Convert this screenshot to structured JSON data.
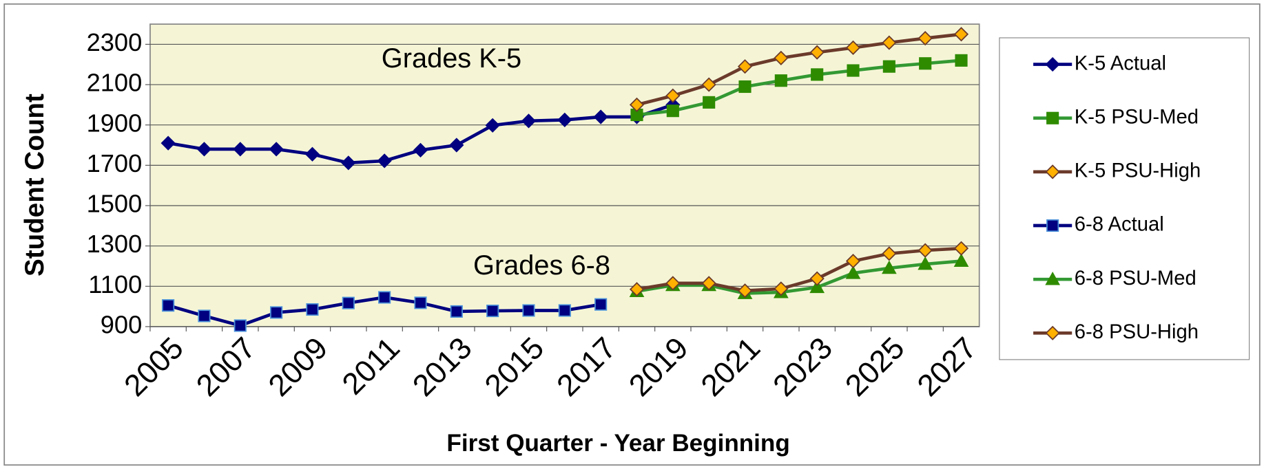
{
  "chart_data": {
    "type": "line",
    "y_label": "Student Count",
    "x_label": "First Quarter - Year Beginning",
    "annotations": [
      "Grades K-5",
      "Grades 6-8"
    ],
    "categories": [
      "2005",
      null,
      "2007",
      null,
      "2009",
      null,
      "2011",
      null,
      "2013",
      null,
      "2015",
      null,
      "2017",
      null,
      "2019",
      null,
      "2021",
      null,
      "2023",
      null,
      "2025",
      null,
      "2027"
    ],
    "ylim": [
      900,
      2400
    ],
    "yticks": [
      900,
      1100,
      1300,
      1500,
      1700,
      1900,
      2100,
      2300
    ],
    "grid": true,
    "legend": "right",
    "series": [
      {
        "name": "K-5 Actual",
        "color": "#000080",
        "marker": "diamond",
        "marker_color": "#000080",
        "values": [
          1810,
          1780,
          1780,
          1780,
          1755,
          1712,
          1722,
          1775,
          1800,
          1898,
          1920,
          1925,
          1940,
          1940,
          2000,
          null,
          null,
          null,
          null,
          null,
          null,
          null,
          null
        ]
      },
      {
        "name": "K-5 PSU-Med",
        "color": "#339933",
        "marker": "square",
        "marker_color": "#2e8b00",
        "values": [
          null,
          null,
          null,
          null,
          null,
          null,
          null,
          null,
          null,
          null,
          null,
          null,
          null,
          1950,
          1970,
          2012,
          2090,
          2120,
          2150,
          2170,
          2190,
          2205,
          2220
        ]
      },
      {
        "name": "K-5 PSU-High",
        "color": "#6b3a2a",
        "marker": "diamond",
        "marker_color": "#ffb000",
        "values": [
          null,
          null,
          null,
          null,
          null,
          null,
          null,
          null,
          null,
          null,
          null,
          null,
          null,
          2000,
          2045,
          2100,
          2190,
          2232,
          2260,
          2283,
          2308,
          2330,
          2350
        ]
      },
      {
        "name": "6-8 Actual",
        "color": "#000080",
        "marker": "square",
        "marker_color": "#000080",
        "values": [
          1005,
          953,
          905,
          970,
          985,
          1017,
          1045,
          1018,
          975,
          978,
          980,
          980,
          1010,
          null,
          null,
          null,
          null,
          null,
          null,
          null,
          null,
          null,
          null
        ]
      },
      {
        "name": "6-8 PSU-Med",
        "color": "#339933",
        "marker": "triangle",
        "marker_color": "#2e8b00",
        "values": [
          null,
          null,
          null,
          null,
          null,
          null,
          null,
          null,
          null,
          null,
          null,
          null,
          null,
          1075,
          1105,
          1105,
          1065,
          1070,
          1095,
          1165,
          1190,
          1210,
          1225
        ]
      },
      {
        "name": "6-8 PSU-High",
        "color": "#6b3a2a",
        "marker": "diamond",
        "marker_color": "#ffb000",
        "values": [
          null,
          null,
          null,
          null,
          null,
          null,
          null,
          null,
          null,
          null,
          null,
          null,
          null,
          1085,
          1115,
          1115,
          1078,
          1088,
          1138,
          1225,
          1262,
          1278,
          1288
        ]
      }
    ]
  }
}
